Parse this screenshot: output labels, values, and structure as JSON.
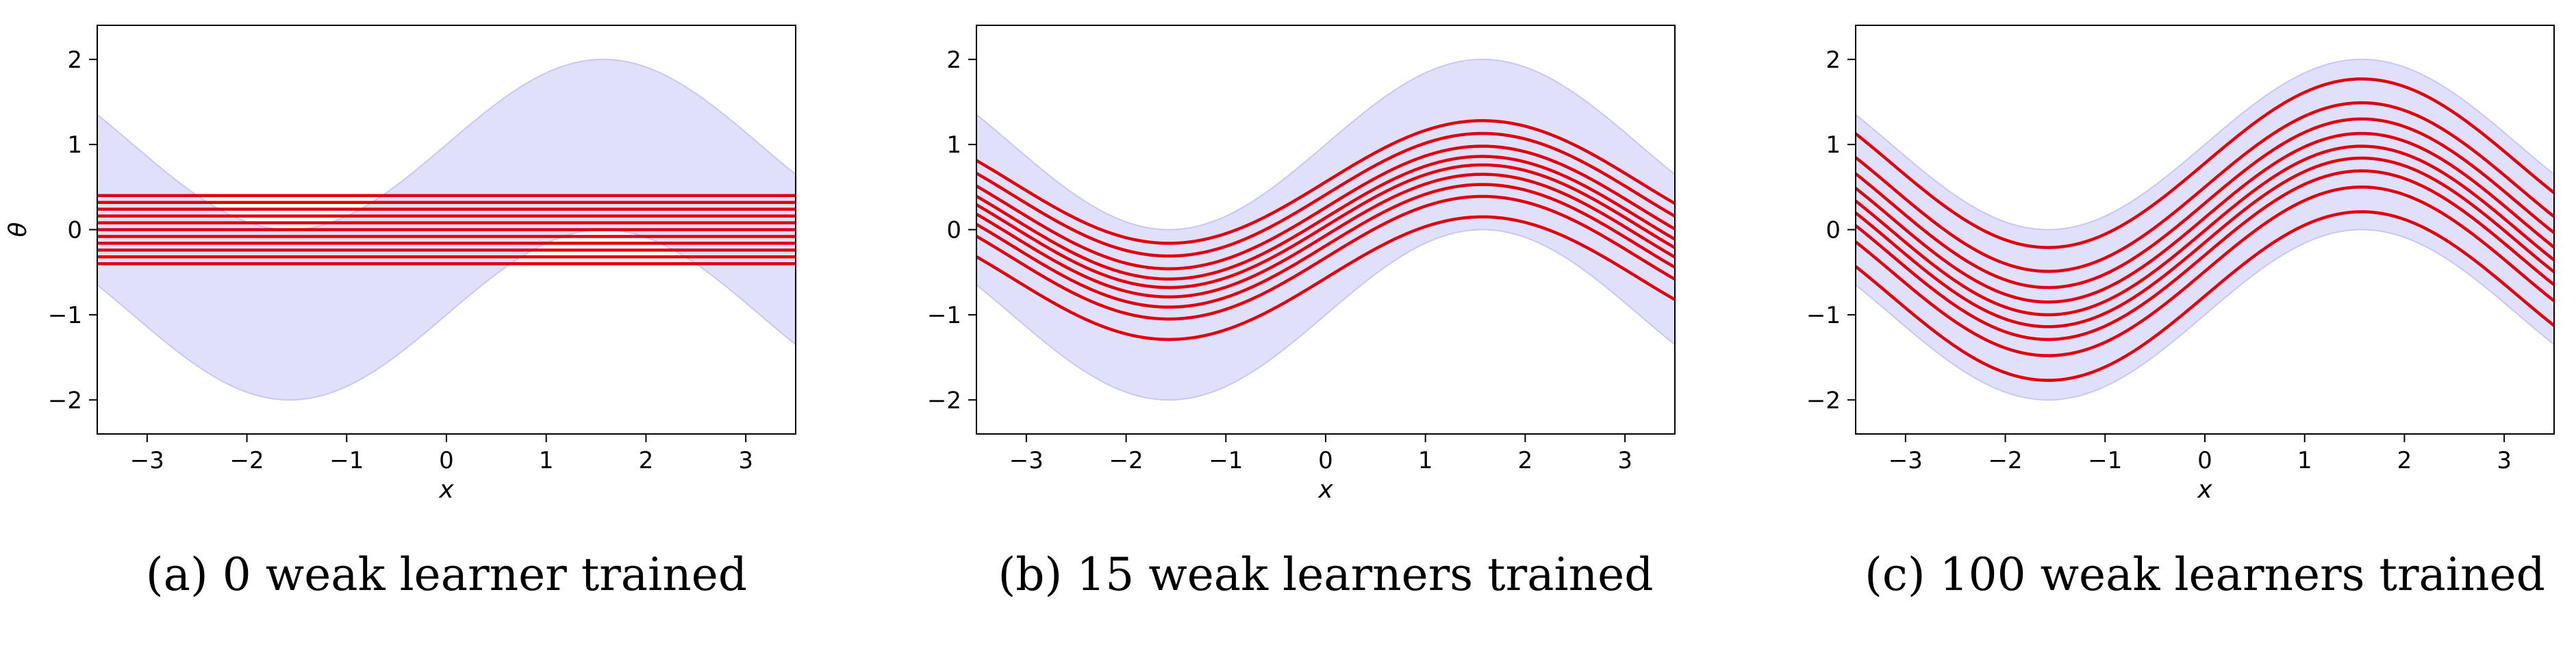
{
  "chart_data": [
    {
      "type": "line",
      "caption": "(a) 0 weak learner trained",
      "xlabel": "x",
      "ylabel": "θ",
      "xlim": [
        -3.5,
        3.5
      ],
      "ylim": [
        -2.4,
        2.4
      ],
      "xticks": [
        -3,
        -2,
        -1,
        0,
        1,
        2,
        3
      ],
      "xtick_labels": [
        "−3",
        "−2",
        "−1",
        "0",
        "1",
        "2",
        "3"
      ],
      "yticks": [
        -2,
        -1,
        0,
        1,
        2
      ],
      "ytick_labels": [
        "−2",
        "−1",
        "0",
        "1",
        "2"
      ],
      "band": {
        "description": "sin(x) ± 1",
        "lower_offset": -1,
        "upper_offset": 1,
        "color": "#e0e0fb",
        "edge_color": "#c8c8f0"
      },
      "series": {
        "count": 11,
        "color": "#e0000d",
        "form": "offset + amp*sin(x)",
        "amp": 0.0,
        "offsets": [
          -0.4,
          -0.32,
          -0.24,
          -0.16,
          -0.08,
          0,
          0.08,
          0.16,
          0.24,
          0.32,
          0.4
        ]
      },
      "background_color": "#ffffff"
    },
    {
      "type": "line",
      "caption": "(b) 15 weak learners trained",
      "xlabel": "x",
      "ylabel": "",
      "xlim": [
        -3.5,
        3.5
      ],
      "ylim": [
        -2.4,
        2.4
      ],
      "xticks": [
        -3,
        -2,
        -1,
        0,
        1,
        2,
        3
      ],
      "xtick_labels": [
        "−3",
        "−2",
        "−1",
        "0",
        "1",
        "2",
        "3"
      ],
      "yticks": [
        -2,
        -1,
        0,
        1,
        2
      ],
      "ytick_labels": [
        "−2",
        "−1",
        "0",
        "1",
        "2"
      ],
      "band": {
        "description": "sin(x) ± 1",
        "lower_offset": -1,
        "upper_offset": 1,
        "color": "#e0e0fb",
        "edge_color": "#c8c8f0"
      },
      "series": {
        "count": 9,
        "color": "#e0000d",
        "form": "offset + amp*sin(x)",
        "amp": 0.72,
        "offsets": [
          -0.57,
          -0.33,
          -0.19,
          -0.07,
          0.04,
          0.14,
          0.26,
          0.41,
          0.56
        ]
      },
      "background_color": "#ffffff"
    },
    {
      "type": "line",
      "caption": "(c) 100 weak learners trained",
      "xlabel": "x",
      "ylabel": "",
      "xlim": [
        -3.5,
        3.5
      ],
      "ylim": [
        -2.4,
        2.4
      ],
      "xticks": [
        -3,
        -2,
        -1,
        0,
        1,
        2,
        3
      ],
      "xtick_labels": [
        "−3",
        "−2",
        "−1",
        "0",
        "1",
        "2",
        "3"
      ],
      "yticks": [
        -2,
        -1,
        0,
        1,
        2
      ],
      "ytick_labels": [
        "−2",
        "−1",
        "0",
        "1",
        "2"
      ],
      "band": {
        "description": "sin(x) ± 1",
        "lower_offset": -1,
        "upper_offset": 1,
        "color": "#e0e0fb",
        "edge_color": "#c8c8f0"
      },
      "series": {
        "count": 9,
        "color": "#e0000d",
        "form": "offset + amp*sin(x)",
        "amp": 0.99,
        "offsets": [
          -0.78,
          -0.49,
          -0.3,
          -0.15,
          -0.01,
          0.14,
          0.31,
          0.5,
          0.78
        ]
      },
      "background_color": "#ffffff"
    }
  ]
}
